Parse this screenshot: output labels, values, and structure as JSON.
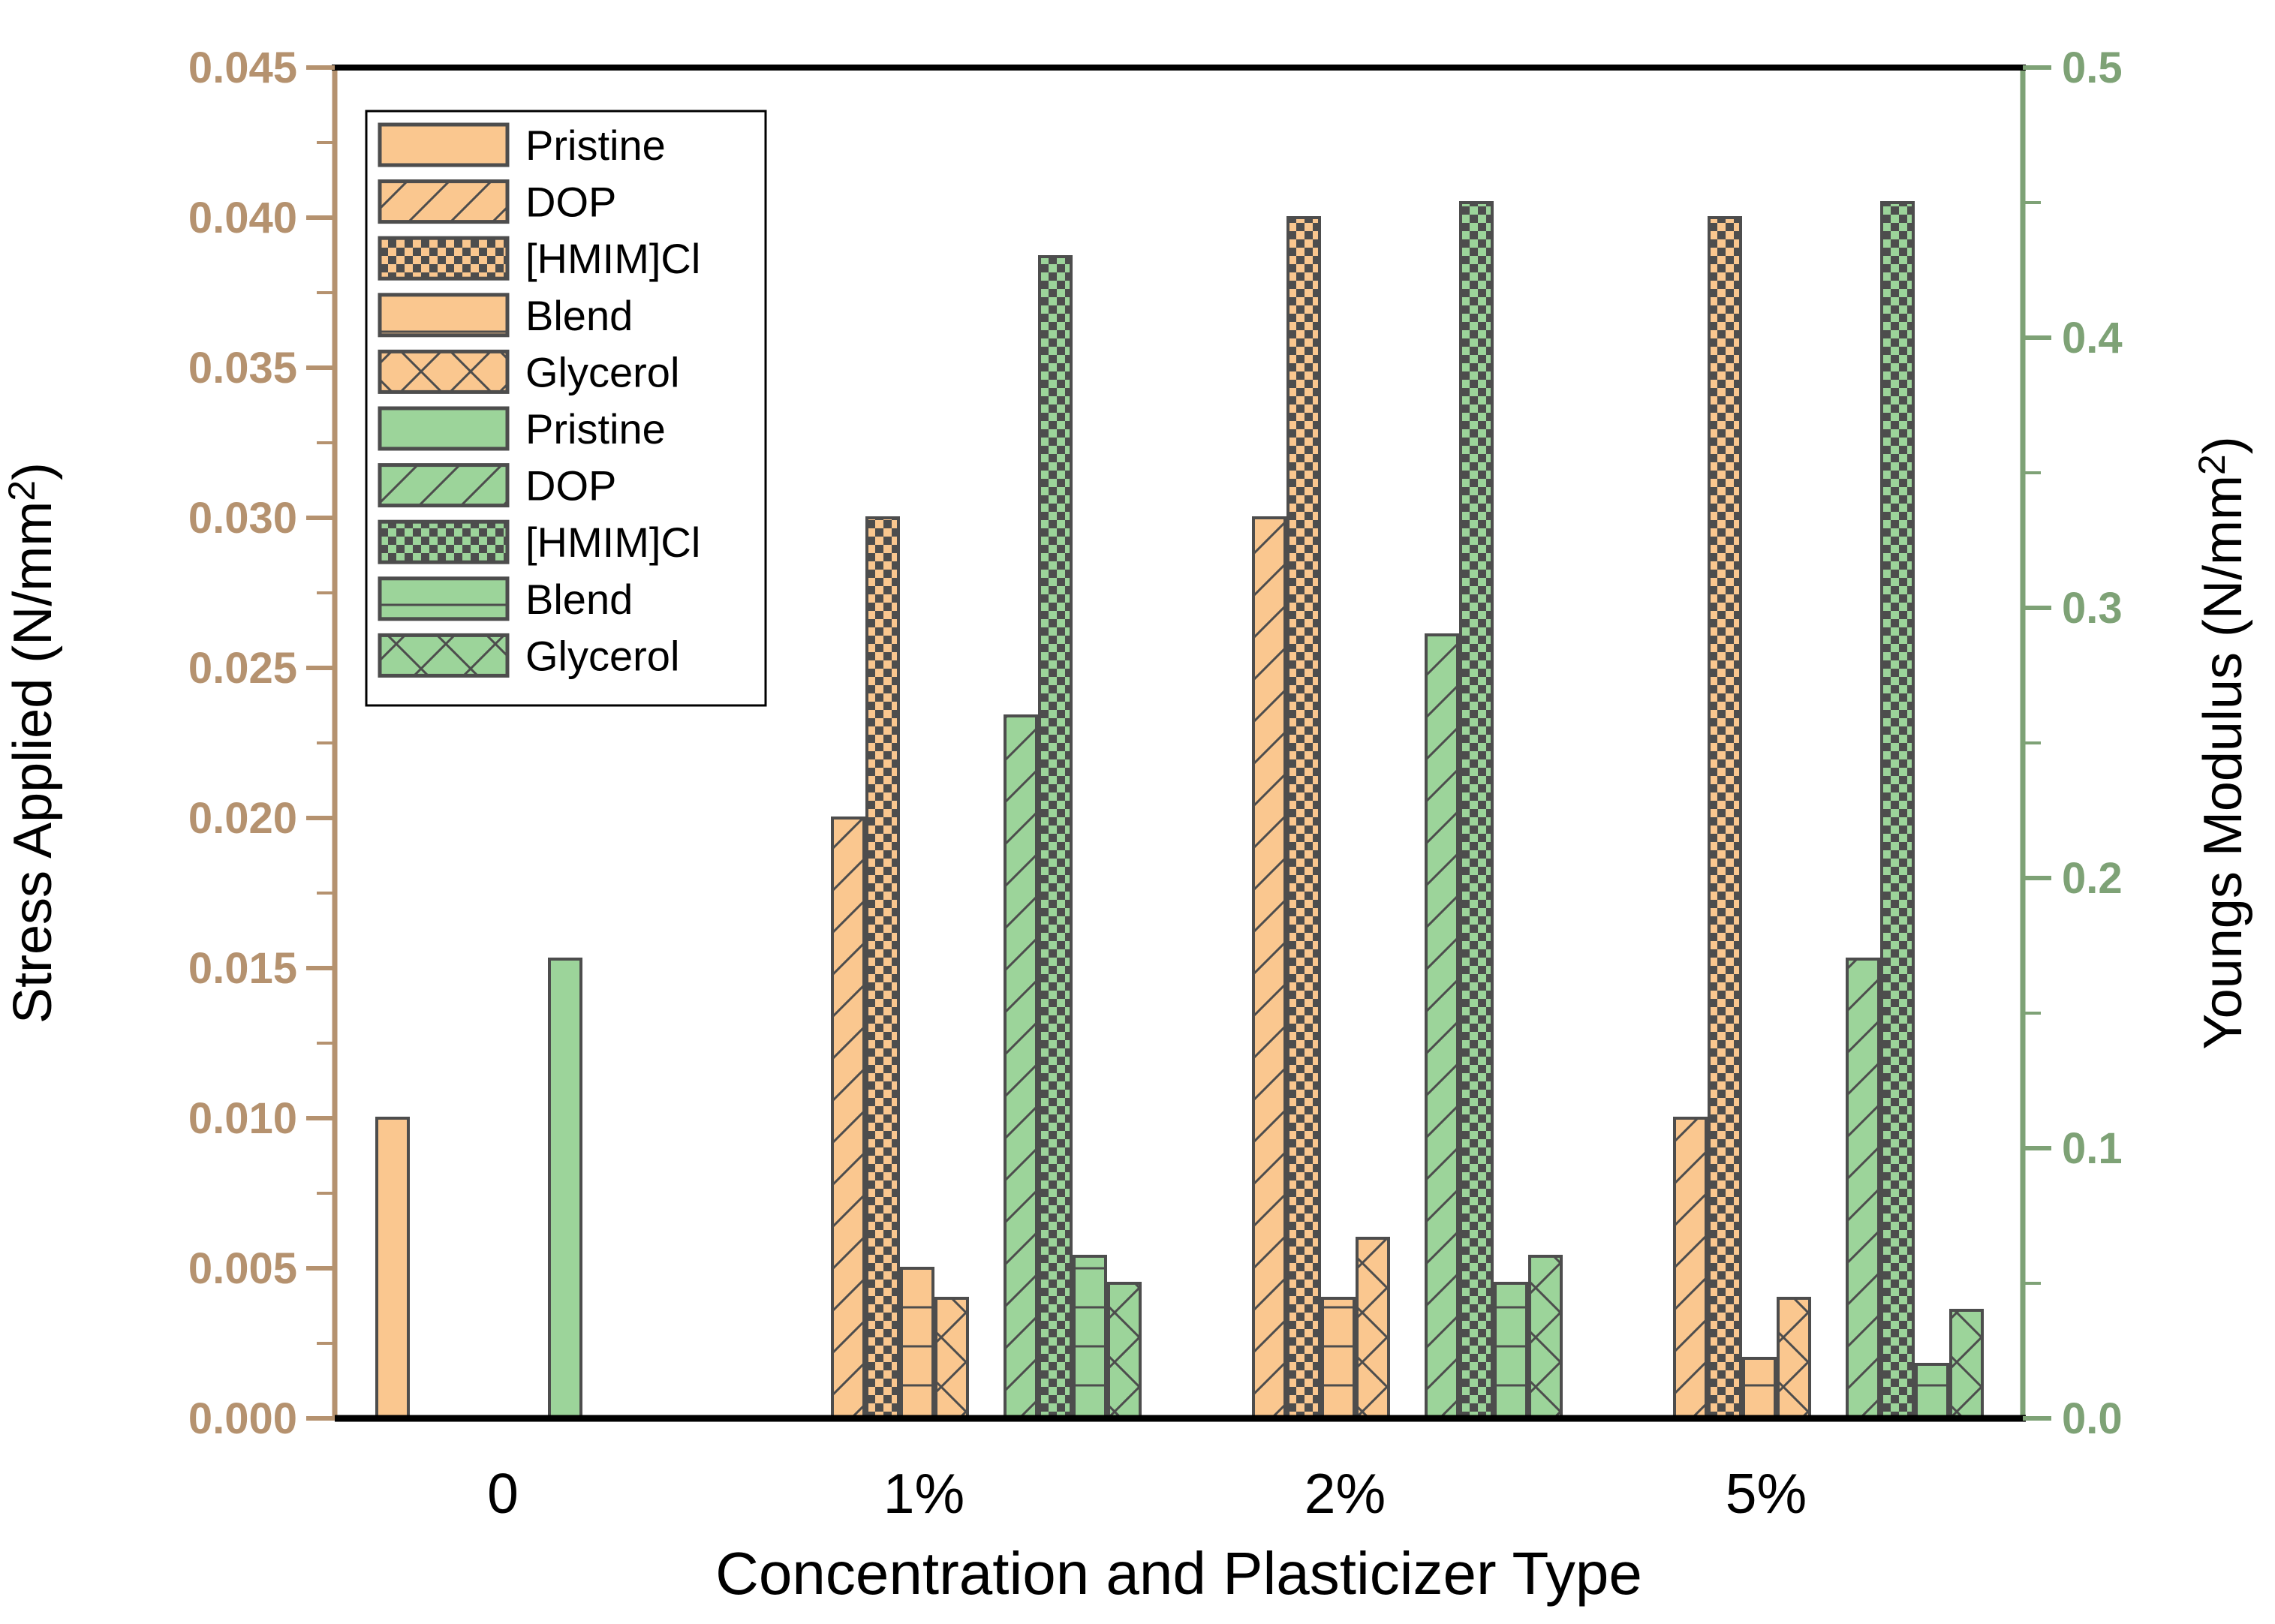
{
  "chart_data": {
    "type": "bar",
    "title": "",
    "xlabel": "Concentration and Plasticizer Type",
    "categories": [
      "0",
      "1%",
      "2%",
      "5%"
    ],
    "left_axis": {
      "label": "Stress Applied (N/mm²)",
      "label_parts": {
        "pre": "Stress Applied (N/mm",
        "sup": "2",
        "post": ")"
      },
      "range": [
        0,
        0.045
      ],
      "major_step": 0.005,
      "minor_step": 0.0025,
      "ticks": [
        "0.000",
        "0.005",
        "0.010",
        "0.015",
        "0.020",
        "0.025",
        "0.030",
        "0.035",
        "0.040",
        "0.045"
      ],
      "color": "#B5926F"
    },
    "right_axis": {
      "label": "Youngs Modulus (N/mm²)",
      "label_parts": {
        "pre": "Youngs Modulus (N/mm",
        "sup": "2",
        "post": ")"
      },
      "range": [
        0,
        0.5
      ],
      "major_step": 0.1,
      "minor_step": 0.05,
      "ticks": [
        "0.0",
        "0.1",
        "0.2",
        "0.3",
        "0.4",
        "0.5"
      ],
      "color": "#7EA276"
    },
    "series": [
      {
        "name": "Pristine",
        "axis": "left",
        "color_key": "orange",
        "pattern": "solid",
        "values": [
          0.01,
          null,
          null,
          null
        ]
      },
      {
        "name": "DOP",
        "axis": "left",
        "color_key": "orange",
        "pattern": "diagonal",
        "values": [
          null,
          0.02,
          0.03,
          0.01
        ]
      },
      {
        "name": "[HMIM]Cl",
        "axis": "left",
        "color_key": "orange",
        "pattern": "checker",
        "values": [
          null,
          0.03,
          0.04,
          0.04
        ]
      },
      {
        "name": "Blend",
        "axis": "left",
        "color_key": "orange",
        "pattern": "hlines",
        "values": [
          null,
          0.005,
          0.004,
          0.002
        ]
      },
      {
        "name": "Glycerol",
        "axis": "left",
        "color_key": "orange",
        "pattern": "crosshatch",
        "values": [
          null,
          0.004,
          0.006,
          0.004
        ]
      },
      {
        "name": "Pristine",
        "axis": "right",
        "color_key": "green",
        "pattern": "solid",
        "values": [
          0.17,
          null,
          null,
          null
        ]
      },
      {
        "name": "DOP",
        "axis": "right",
        "color_key": "green",
        "pattern": "diagonal",
        "values": [
          null,
          0.26,
          0.29,
          0.17
        ]
      },
      {
        "name": "[HMIM]Cl",
        "axis": "right",
        "color_key": "green",
        "pattern": "checker",
        "values": [
          null,
          0.43,
          0.45,
          0.45
        ]
      },
      {
        "name": "Blend",
        "axis": "right",
        "color_key": "green",
        "pattern": "hlines",
        "values": [
          null,
          0.06,
          0.05,
          0.02
        ]
      },
      {
        "name": "Glycerol",
        "axis": "right",
        "color_key": "green",
        "pattern": "crosshatch",
        "values": [
          null,
          0.05,
          0.06,
          0.04
        ]
      }
    ],
    "colors": {
      "orange": "#FAC78F",
      "green": "#9CD49A",
      "bar_edge": "#4D4D4D",
      "hatch": "#4D4D4D",
      "frame": "#000000",
      "background": "#FFFFFF"
    },
    "legend": {
      "position": "top-left",
      "border_color": "#000000",
      "background": "#FFFFFF"
    },
    "grid": false
  }
}
